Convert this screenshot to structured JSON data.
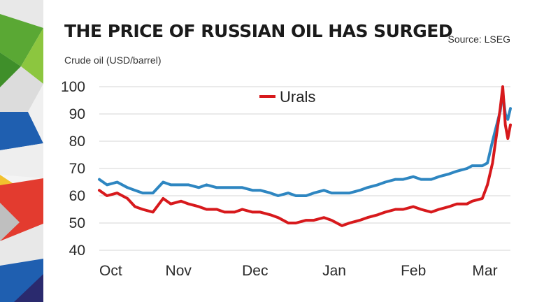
{
  "header": {
    "title": "THE PRICE OF RUSSIAN OIL HAS SURGED",
    "source": "Source: LSEG",
    "subtitle": "Crude oil (USD/barrel)"
  },
  "colors": {
    "urals": "#d7191c",
    "second_series": "#2e86c1",
    "grid": "#d4d4d4"
  },
  "chart_data": {
    "type": "line",
    "ylabel": "Crude oil (USD/barrel)",
    "ylim": [
      40,
      100
    ],
    "y_ticks": [
      40,
      50,
      60,
      70,
      80,
      90,
      100
    ],
    "x_ticks": [
      "Oct",
      "Nov",
      "Dec",
      "Jan",
      "Feb",
      "Mar"
    ],
    "x_range": [
      "2021-10-01",
      "2022-03-11"
    ],
    "grid": "horizontal",
    "legend": "top-center",
    "series": [
      {
        "name": "Urals",
        "color": "#d7191c",
        "dates": [
          "2021-10-01",
          "2021-10-04",
          "2021-10-08",
          "2021-10-12",
          "2021-10-15",
          "2021-10-18",
          "2021-10-22",
          "2021-10-26",
          "2021-10-29",
          "2021-11-02",
          "2021-11-05",
          "2021-11-09",
          "2021-11-12",
          "2021-11-16",
          "2021-11-19",
          "2021-11-23",
          "2021-11-26",
          "2021-11-30",
          "2021-12-03",
          "2021-12-07",
          "2021-12-10",
          "2021-12-14",
          "2021-12-17",
          "2021-12-21",
          "2021-12-24",
          "2021-12-28",
          "2021-12-31",
          "2022-01-04",
          "2022-01-07",
          "2022-01-11",
          "2022-01-14",
          "2022-01-18",
          "2022-01-21",
          "2022-01-25",
          "2022-01-28",
          "2022-02-01",
          "2022-02-04",
          "2022-02-08",
          "2022-02-11",
          "2022-02-15",
          "2022-02-18",
          "2022-02-22",
          "2022-02-24",
          "2022-02-28",
          "2022-03-02",
          "2022-03-04",
          "2022-03-07",
          "2022-03-08",
          "2022-03-09",
          "2022-03-10",
          "2022-03-11"
        ],
        "values": [
          62,
          60,
          61,
          59,
          56,
          55,
          54,
          59,
          57,
          58,
          57,
          56,
          55,
          55,
          54,
          54,
          55,
          54,
          54,
          53,
          52,
          50,
          50,
          51,
          51,
          52,
          51,
          49,
          50,
          51,
          52,
          53,
          54,
          55,
          55,
          56,
          55,
          54,
          55,
          56,
          57,
          57,
          58,
          59,
          64,
          72,
          92,
          100,
          86,
          81,
          86
        ]
      },
      {
        "name": "",
        "color": "#2e86c1",
        "dates": [
          "2021-10-01",
          "2021-10-04",
          "2021-10-08",
          "2021-10-12",
          "2021-10-15",
          "2021-10-18",
          "2021-10-22",
          "2021-10-26",
          "2021-10-29",
          "2021-11-02",
          "2021-11-05",
          "2021-11-09",
          "2021-11-12",
          "2021-11-16",
          "2021-11-19",
          "2021-11-23",
          "2021-11-26",
          "2021-11-30",
          "2021-12-03",
          "2021-12-07",
          "2021-12-10",
          "2021-12-14",
          "2021-12-17",
          "2021-12-21",
          "2021-12-24",
          "2021-12-28",
          "2021-12-31",
          "2022-01-04",
          "2022-01-07",
          "2022-01-11",
          "2022-01-14",
          "2022-01-18",
          "2022-01-21",
          "2022-01-25",
          "2022-01-28",
          "2022-02-01",
          "2022-02-04",
          "2022-02-08",
          "2022-02-11",
          "2022-02-15",
          "2022-02-18",
          "2022-02-22",
          "2022-02-24",
          "2022-02-28",
          "2022-03-02",
          "2022-03-04",
          "2022-03-07",
          "2022-03-08",
          "2022-03-09",
          "2022-03-10",
          "2022-03-11"
        ],
        "values": [
          66,
          64,
          65,
          63,
          62,
          61,
          61,
          65,
          64,
          64,
          64,
          63,
          64,
          63,
          63,
          63,
          63,
          62,
          62,
          61,
          60,
          61,
          60,
          60,
          61,
          62,
          61,
          61,
          61,
          62,
          63,
          64,
          65,
          66,
          66,
          67,
          66,
          66,
          67,
          68,
          69,
          70,
          71,
          71,
          72,
          80,
          91,
          98,
          90,
          88,
          92
        ]
      }
    ]
  }
}
